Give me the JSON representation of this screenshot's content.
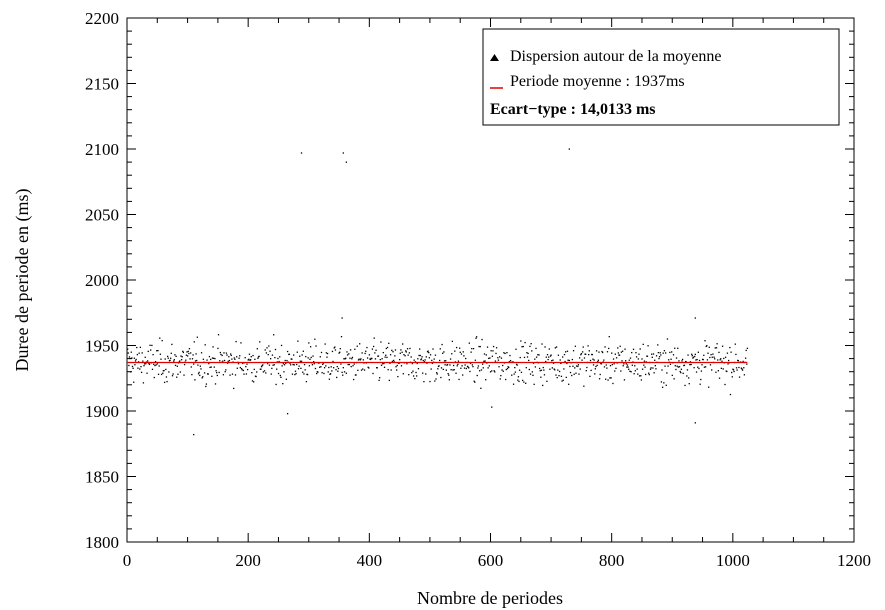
{
  "chart_data": {
    "type": "scatter",
    "xlabel": "Nombre de periodes",
    "ylabel": "Duree de periode en (ms)",
    "xlim": [
      0,
      1200
    ],
    "ylim": [
      1800,
      2200
    ],
    "xticks": [
      0,
      200,
      400,
      600,
      800,
      1000,
      1200
    ],
    "yticks": [
      1800,
      1850,
      1900,
      1950,
      2000,
      2050,
      2100,
      2150,
      2200
    ],
    "grid": false,
    "legend_position": "top-right",
    "legend": {
      "scatter_label": "Dispersion  autour de la moyenne",
      "mean_label": "Periode moyenne : 1937ms",
      "std_label": "Ecart−type : 14,0133 ms"
    },
    "colors": {
      "points": "#000000",
      "mean_line": "#e00000"
    },
    "mean_line": {
      "y": 1937,
      "x_range": [
        0,
        1024
      ]
    },
    "series": [
      {
        "kind": "scatter",
        "n_points": 1024,
        "x_range": [
          1,
          1024
        ],
        "typical_y_range": [
          1905,
          1970
        ],
        "center": 1937,
        "outliers": [
          {
            "x": 110,
            "y": 1882
          },
          {
            "x": 265,
            "y": 1898
          },
          {
            "x": 288,
            "y": 2097
          },
          {
            "x": 355,
            "y": 1971
          },
          {
            "x": 357,
            "y": 2097
          },
          {
            "x": 362,
            "y": 2090
          },
          {
            "x": 602,
            "y": 1903
          },
          {
            "x": 730,
            "y": 2100
          },
          {
            "x": 938,
            "y": 1891
          },
          {
            "x": 938,
            "y": 1971
          }
        ]
      }
    ]
  }
}
